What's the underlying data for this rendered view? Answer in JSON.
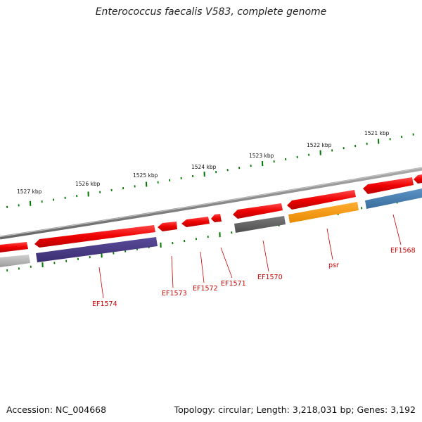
{
  "title": "Enterococcus faecalis V583, complete genome",
  "footer": {
    "accession": "Accession: NC_004668",
    "topology": "Topology: circular; Length: 3,218,031 bp; Genes: 3,192"
  },
  "colors": {
    "backbone": "#888888",
    "forward_gene": "#ee0000",
    "scale_tick": "#007700",
    "gene_label": "#cc0000"
  },
  "scale_labels": [
    "1527 kbp",
    "1526 kbp",
    "1525 kbp",
    "1524 kbp",
    "1523 kbp",
    "1522 kbp",
    "1521 kbp"
  ],
  "gene_labels": [
    "EF1574",
    "EF1573",
    "EF1572",
    "EF1571",
    "EF1570",
    "psr",
    "EF1568"
  ]
}
